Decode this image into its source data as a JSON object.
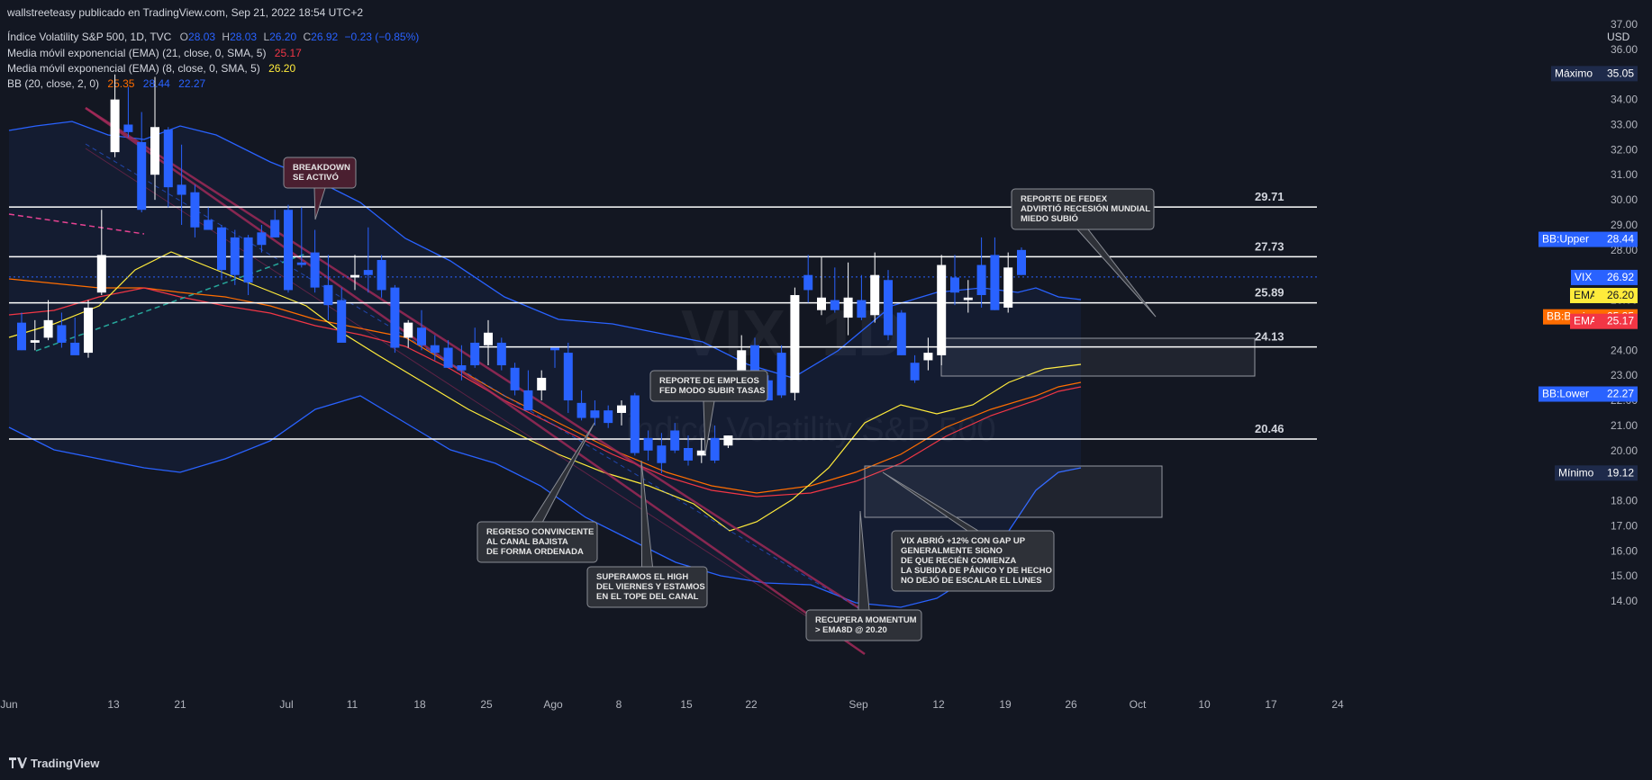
{
  "header": {
    "published_by": "wallstreeteasy publicado en TradingView.com, Sep 21, 2022 18:54 UTC+2",
    "symbol_line": {
      "name": "Índice Volatility S&P 500, 1D, TVC",
      "o_key": "O",
      "o_val": "28.03",
      "h_key": "H",
      "h_val": "28.03",
      "l_key": "L",
      "l_val": "26.20",
      "c_key": "C",
      "c_val": "26.92",
      "change": "−0.23 (−0.85%)"
    },
    "indicators": [
      {
        "label": "Media móvil exponencial (EMA) (21, close, 0, SMA, 5)",
        "value": "25.17",
        "color": "#f23645"
      },
      {
        "label": "Media móvil exponencial (EMA) (8, close, 0, SMA, 5)",
        "value": "26.20",
        "color": "#ffeb3b"
      },
      {
        "label": "BB (20, close, 2, 0)",
        "values": [
          "25.35",
          "28.44",
          "22.27"
        ],
        "colors": [
          "#ff6d00",
          "#2962ff",
          "#2962ff"
        ]
      }
    ],
    "currency": "USD"
  },
  "watermark": {
    "big": "VIX, 1D",
    "small": "Índice Volatility S&P 500"
  },
  "colors": {
    "background": "#131722",
    "up": "#ffffff",
    "down": "#2962ff",
    "bb_band": "#2962ff",
    "bb_basis": "#ff6d00",
    "ema21": "#f23645",
    "ema8": "#ffeb3b",
    "channel": "#a52a5a",
    "level_line": "#ffffff"
  },
  "chart_data": {
    "type": "candlestick",
    "title": "Índice Volatility S&P 500, 1D, TVC",
    "ylabel": "USD",
    "ylim": [
      13.3,
      37.8
    ],
    "y_ticks": [
      "14.00",
      "15.00",
      "16.00",
      "17.00",
      "18.00",
      "19.00",
      "20.00",
      "21.00",
      "22.00",
      "23.00",
      "24.00",
      "25.00",
      "26.00",
      "27.00",
      "28.00",
      "29.00",
      "30.00",
      "31.00",
      "32.00",
      "33.00",
      "34.00",
      "35.00",
      "36.00",
      "37.00"
    ],
    "x_ticks": [
      "Jun",
      "13",
      "21",
      "Jul",
      "11",
      "18",
      "25",
      "Ago",
      "8",
      "15",
      "22",
      "Sep",
      "12",
      "19",
      "26",
      "Oct",
      "10",
      "17",
      "24"
    ],
    "candles": [
      {
        "date": "Jun 7",
        "o": 25.1,
        "h": 25.5,
        "l": 24.0,
        "c": 24.0
      },
      {
        "date": "Jun 8",
        "o": 24.3,
        "h": 25.2,
        "l": 24.0,
        "c": 24.4
      },
      {
        "date": "Jun 9",
        "o": 24.5,
        "h": 26.0,
        "l": 24.4,
        "c": 25.2
      },
      {
        "date": "Jun 10",
        "o": 25.0,
        "h": 25.5,
        "l": 24.1,
        "c": 24.3
      },
      {
        "date": "Jun 13",
        "o": 24.3,
        "h": 25.3,
        "l": 23.9,
        "c": 23.8
      },
      {
        "date": "Jun 14",
        "o": 23.9,
        "h": 26.0,
        "l": 23.7,
        "c": 25.7
      },
      {
        "date": "Jun 15",
        "o": 26.3,
        "h": 29.6,
        "l": 26.2,
        "c": 27.8
      },
      {
        "date": "Jun 16",
        "o": 31.9,
        "h": 35.0,
        "l": 31.7,
        "c": 34.0
      },
      {
        "date": "Jun 17",
        "o": 33.0,
        "h": 34.5,
        "l": 32.5,
        "c": 32.7
      },
      {
        "date": "Jun 21",
        "o": 32.3,
        "h": 33.5,
        "l": 29.5,
        "c": 29.6
      },
      {
        "date": "Jun 22",
        "o": 31.0,
        "h": 34.9,
        "l": 30.0,
        "c": 32.9
      },
      {
        "date": "Jun 23",
        "o": 32.8,
        "h": 32.9,
        "l": 29.7,
        "c": 30.5
      },
      {
        "date": "Jun 24",
        "o": 30.6,
        "h": 32.2,
        "l": 29.0,
        "c": 30.2
      },
      {
        "date": "Jun 27",
        "o": 30.3,
        "h": 30.6,
        "l": 28.5,
        "c": 28.9
      },
      {
        "date": "Jun 28",
        "o": 29.2,
        "h": 29.7,
        "l": 28.8,
        "c": 28.8
      },
      {
        "date": "Jun 29",
        "o": 28.9,
        "h": 29.0,
        "l": 26.8,
        "c": 27.2
      },
      {
        "date": "Jun 30",
        "o": 28.5,
        "h": 28.8,
        "l": 26.6,
        "c": 27.0
      },
      {
        "date": "Jul 1",
        "o": 28.5,
        "h": 28.6,
        "l": 26.2,
        "c": 26.7
      },
      {
        "date": "Jul 5",
        "o": 28.7,
        "h": 29.0,
        "l": 27.9,
        "c": 28.2
      },
      {
        "date": "Jul 6",
        "o": 29.2,
        "h": 29.6,
        "l": 28.5,
        "c": 28.5
      },
      {
        "date": "Jul 7",
        "o": 29.6,
        "h": 29.8,
        "l": 26.3,
        "c": 26.4
      },
      {
        "date": "Jul 8",
        "o": 27.5,
        "h": 29.7,
        "l": 27.3,
        "c": 27.4
      },
      {
        "date": "Jul 11",
        "o": 27.9,
        "h": 28.8,
        "l": 26.3,
        "c": 26.5
      },
      {
        "date": "Jul 12",
        "o": 26.6,
        "h": 27.8,
        "l": 25.2,
        "c": 25.8
      },
      {
        "date": "Jul 13",
        "o": 26.0,
        "h": 26.5,
        "l": 24.5,
        "c": 24.3
      },
      {
        "date": "Jul 14",
        "o": 26.9,
        "h": 27.8,
        "l": 26.4,
        "c": 27.0
      },
      {
        "date": "Jul 15",
        "o": 27.2,
        "h": 28.9,
        "l": 26.3,
        "c": 27.0
      },
      {
        "date": "Jul 18",
        "o": 27.6,
        "h": 27.8,
        "l": 26.1,
        "c": 26.4
      },
      {
        "date": "Jul 19",
        "o": 26.5,
        "h": 26.6,
        "l": 23.9,
        "c": 24.1
      },
      {
        "date": "Jul 20",
        "o": 24.5,
        "h": 25.2,
        "l": 24.1,
        "c": 25.1
      },
      {
        "date": "Jul 21",
        "o": 24.9,
        "h": 25.6,
        "l": 24.0,
        "c": 24.2
      },
      {
        "date": "Jul 22",
        "o": 24.2,
        "h": 24.6,
        "l": 23.6,
        "c": 23.9
      },
      {
        "date": "Jul 25",
        "o": 24.1,
        "h": 24.4,
        "l": 23.3,
        "c": 23.3
      },
      {
        "date": "Jul 26",
        "o": 23.4,
        "h": 24.2,
        "l": 22.8,
        "c": 23.2
      },
      {
        "date": "Jul 27",
        "o": 24.3,
        "h": 24.9,
        "l": 23.3,
        "c": 23.4
      },
      {
        "date": "Jul 28",
        "o": 24.2,
        "h": 25.2,
        "l": 23.4,
        "c": 24.7
      },
      {
        "date": "Jul 29",
        "o": 24.3,
        "h": 24.5,
        "l": 23.2,
        "c": 23.4
      },
      {
        "date": "Aug 1",
        "o": 23.3,
        "h": 23.5,
        "l": 22.2,
        "c": 22.4
      },
      {
        "date": "Aug 2",
        "o": 22.4,
        "h": 23.2,
        "l": 21.6,
        "c": 21.6
      },
      {
        "date": "Aug 3",
        "o": 22.4,
        "h": 23.2,
        "l": 22.0,
        "c": 22.9
      },
      {
        "date": "Aug 4",
        "o": 24.1,
        "h": 24.1,
        "l": 23.3,
        "c": 24.0
      },
      {
        "date": "Aug 5",
        "o": 23.9,
        "h": 24.3,
        "l": 21.5,
        "c": 22.0
      },
      {
        "date": "Aug 8",
        "o": 21.9,
        "h": 22.4,
        "l": 21.2,
        "c": 21.3
      },
      {
        "date": "Aug 9",
        "o": 21.6,
        "h": 22.0,
        "l": 21.0,
        "c": 21.3
      },
      {
        "date": "Aug 10",
        "o": 21.6,
        "h": 21.8,
        "l": 20.9,
        "c": 21.1
      },
      {
        "date": "Aug 11",
        "o": 21.5,
        "h": 22.0,
        "l": 21.0,
        "c": 21.8
      },
      {
        "date": "Aug 12",
        "o": 22.2,
        "h": 22.3,
        "l": 19.8,
        "c": 19.9
      },
      {
        "date": "Aug 15",
        "o": 20.5,
        "h": 20.8,
        "l": 19.6,
        "c": 20.0
      },
      {
        "date": "Aug 16",
        "o": 20.2,
        "h": 20.7,
        "l": 19.1,
        "c": 19.5
      },
      {
        "date": "Aug 17",
        "o": 20.8,
        "h": 21.1,
        "l": 19.9,
        "c": 20.0
      },
      {
        "date": "Aug 18",
        "o": 20.1,
        "h": 20.6,
        "l": 19.4,
        "c": 19.6
      },
      {
        "date": "Aug 19",
        "o": 19.8,
        "h": 20.5,
        "l": 19.5,
        "c": 20.0
      },
      {
        "date": "Aug 22",
        "o": 20.5,
        "h": 21.0,
        "l": 19.5,
        "c": 19.6
      },
      {
        "date": "Aug 23",
        "o": 20.2,
        "h": 20.6,
        "l": 20.1,
        "c": 20.6
      },
      {
        "date": "Aug 24",
        "o": 22.6,
        "h": 24.6,
        "l": 22.6,
        "c": 24.0
      },
      {
        "date": "Aug 25",
        "o": 24.2,
        "h": 24.5,
        "l": 22.3,
        "c": 22.6
      },
      {
        "date": "Aug 26",
        "o": 22.8,
        "h": 23.0,
        "l": 22.0,
        "c": 22.0
      },
      {
        "date": "Aug 29",
        "o": 23.9,
        "h": 24.2,
        "l": 22.1,
        "c": 22.2
      },
      {
        "date": "Aug 30",
        "o": 22.3,
        "h": 26.5,
        "l": 22.0,
        "c": 26.2
      },
      {
        "date": "Aug 31",
        "o": 27.0,
        "h": 27.8,
        "l": 25.9,
        "c": 26.4
      },
      {
        "date": "Sep 1",
        "o": 25.6,
        "h": 27.7,
        "l": 25.4,
        "c": 26.1
      },
      {
        "date": "Sep 2",
        "o": 26.0,
        "h": 27.3,
        "l": 25.5,
        "c": 25.6
      },
      {
        "date": "Sep 6",
        "o": 25.3,
        "h": 27.5,
        "l": 24.6,
        "c": 26.1
      },
      {
        "date": "Sep 7",
        "o": 26.0,
        "h": 27.0,
        "l": 25.2,
        "c": 25.3
      },
      {
        "date": "Sep 8",
        "o": 25.4,
        "h": 27.9,
        "l": 25.1,
        "c": 27.0
      },
      {
        "date": "Sep 9",
        "o": 26.8,
        "h": 27.2,
        "l": 24.4,
        "c": 24.6
      },
      {
        "date": "Sep 12",
        "o": 25.5,
        "h": 25.6,
        "l": 23.8,
        "c": 23.8
      },
      {
        "date": "Sep 13",
        "o": 23.5,
        "h": 23.8,
        "l": 22.7,
        "c": 22.8
      },
      {
        "date": "Sep 14",
        "o": 23.6,
        "h": 24.5,
        "l": 23.2,
        "c": 23.9
      },
      {
        "date": "Sep 15",
        "o": 23.8,
        "h": 27.8,
        "l": 23.4,
        "c": 27.4
      },
      {
        "date": "Sep 16",
        "o": 26.9,
        "h": 27.8,
        "l": 25.8,
        "c": 26.3
      },
      {
        "date": "Sep 19",
        "o": 26.0,
        "h": 26.8,
        "l": 25.5,
        "c": 26.1
      },
      {
        "date": "Sep 20",
        "o": 27.4,
        "h": 28.5,
        "l": 25.7,
        "c": 26.2
      },
      {
        "date": "Sep 21",
        "o": 27.8,
        "h": 28.5,
        "l": 25.6,
        "c": 25.6
      },
      {
        "date": "Sep 22",
        "o": 25.7,
        "h": 27.9,
        "l": 25.5,
        "c": 27.3
      },
      {
        "date": "Sep 23",
        "o": 28.0,
        "h": 28.1,
        "l": 27.0,
        "c": 27.0
      }
    ],
    "levels": [
      {
        "label": "29.71",
        "value": 29.71
      },
      {
        "label": "27.73",
        "value": 27.73
      },
      {
        "label": "25.89",
        "value": 25.89
      },
      {
        "label": "24.13",
        "value": 24.13
      },
      {
        "label": "20.46",
        "value": 20.46
      }
    ],
    "price_badges": [
      {
        "label": "Máximo",
        "value_text": "35.05",
        "value": 35.05,
        "bg": "#1e2a4a",
        "text_color": "#ffffff"
      },
      {
        "label": "BB:Upper",
        "value_text": "28.44",
        "value": 28.44,
        "bg": "#2962ff",
        "text_color": "#ffffff"
      },
      {
        "label": "VIX",
        "value_text": "26.92",
        "value": 26.92,
        "bg": "#2962ff",
        "text_color": "#ffffff"
      },
      {
        "label": "EMA",
        "value_text": "26.20",
        "value": 26.2,
        "bg": "#ffeb3b",
        "text_color": "#131722"
      },
      {
        "label": "BB:Basis",
        "value_text": "25.35",
        "value": 25.35,
        "bg": "#ff6d00",
        "text_color": "#ffffff"
      },
      {
        "label": "EMA",
        "value_text": "25.17",
        "value": 25.17,
        "bg": "#f23645",
        "text_color": "#ffffff"
      },
      {
        "label": "BB:Lower",
        "value_text": "22.27",
        "value": 22.27,
        "bg": "#2962ff",
        "text_color": "#ffffff"
      },
      {
        "label": "Mínimo",
        "value_text": "19.12",
        "value": 19.12,
        "bg": "#1e2a4a",
        "text_color": "#ffffff"
      }
    ],
    "annotations": [
      {
        "lines": [
          "BREAKDOWN",
          "SE ACTIVÓ"
        ],
        "style": "red"
      },
      {
        "lines": [
          "REPORTE DE FEDEX",
          "ADVIRTIÓ RECESIÓN MUNDIAL",
          "MIEDO SUBIÓ"
        ],
        "style": "grey"
      },
      {
        "lines": [
          "REPORTE DE EMPLEOS",
          "FED MODO SUBIR TASAS"
        ],
        "style": "grey"
      },
      {
        "lines": [
          "REGRESO CONVINCENTE",
          "AL CANAL BAJISTA",
          "DE FORMA ORDENADA"
        ],
        "style": "grey"
      },
      {
        "lines": [
          "SUPERAMOS EL HIGH",
          "DEL VIERNES Y ESTAMOS",
          "EN EL TOPE DEL CANAL"
        ],
        "style": "grey"
      },
      {
        "lines": [
          "RECUPERA MOMENTUM",
          "> EMA8D @ 20.20"
        ],
        "style": "grey"
      },
      {
        "lines": [
          "VIX ABRIÓ +12% CON GAP UP",
          "GENERALMENTE SIGNO",
          "DE QUE RECIÉN COMIENZA",
          "LA SUBIDA DE PÁNICO Y DE HECHO",
          "NO DEJÓ DE ESCALAR EL LUNES"
        ],
        "style": "grey"
      }
    ],
    "grid": false,
    "legend": "top-left"
  },
  "footer": {
    "brand": "TradingView"
  }
}
